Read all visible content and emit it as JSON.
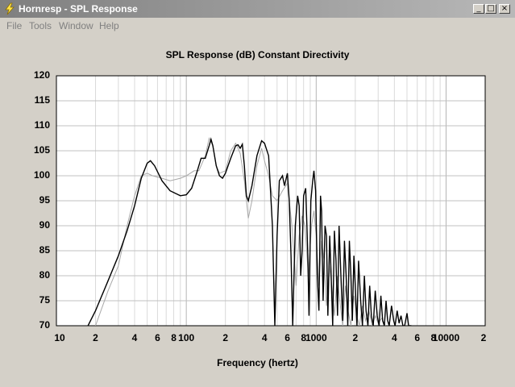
{
  "window": {
    "title": "Hornresp - SPL Response",
    "icon": "lightning-bolt-icon",
    "controls": {
      "minimize": "_",
      "maximize": "□",
      "close": "×"
    }
  },
  "menu": [
    "File",
    "Tools",
    "Window",
    "Help"
  ],
  "chart_data": {
    "type": "line",
    "title": "SPL Response (dB)   Constant Directivity",
    "xlabel": "Frequency (hertz)",
    "ylabel": "",
    "x_scale": "log",
    "xlim": [
      10,
      20000
    ],
    "ylim": [
      70,
      120
    ],
    "grid": true,
    "y_ticks": [
      "120",
      "115",
      "110",
      "105",
      "100",
      "95",
      "90",
      "85",
      "80",
      "75",
      "70"
    ],
    "x_ticks": [
      {
        "value": 10,
        "label": "10"
      },
      {
        "value": 20,
        "label": "2"
      },
      {
        "value": 40,
        "label": "4"
      },
      {
        "value": 60,
        "label": "6"
      },
      {
        "value": 80,
        "label": "8"
      },
      {
        "value": 100,
        "label": "100"
      },
      {
        "value": 200,
        "label": "2"
      },
      {
        "value": 400,
        "label": "4"
      },
      {
        "value": 600,
        "label": "6"
      },
      {
        "value": 800,
        "label": "8"
      },
      {
        "value": 1000,
        "label": "1000"
      },
      {
        "value": 2000,
        "label": "2"
      },
      {
        "value": 4000,
        "label": "4"
      },
      {
        "value": 6000,
        "label": "6"
      },
      {
        "value": 8000,
        "label": "8"
      },
      {
        "value": 10000,
        "label": "10000"
      },
      {
        "value": 20000,
        "label": "2"
      }
    ],
    "series": [
      {
        "color": "#000000",
        "points": [
          [
            17.5,
            70
          ],
          [
            20,
            73
          ],
          [
            25,
            79
          ],
          [
            30,
            84
          ],
          [
            35,
            89
          ],
          [
            40,
            94
          ],
          [
            45,
            99.5
          ],
          [
            50,
            102.5
          ],
          [
            53,
            103
          ],
          [
            57,
            102
          ],
          [
            65,
            99
          ],
          [
            75,
            97
          ],
          [
            90,
            96
          ],
          [
            100,
            96.2
          ],
          [
            110,
            97.5
          ],
          [
            120,
            100.5
          ],
          [
            130,
            103.5
          ],
          [
            140,
            103.5
          ],
          [
            150,
            106
          ],
          [
            155,
            107.3
          ],
          [
            160,
            106
          ],
          [
            170,
            102
          ],
          [
            180,
            100
          ],
          [
            190,
            99.5
          ],
          [
            200,
            100.5
          ],
          [
            220,
            103.5
          ],
          [
            240,
            106
          ],
          [
            250,
            106.2
          ],
          [
            260,
            105.5
          ],
          [
            270,
            106.3
          ],
          [
            280,
            102
          ],
          [
            290,
            96
          ],
          [
            300,
            95
          ],
          [
            320,
            98
          ],
          [
            350,
            104
          ],
          [
            380,
            107
          ],
          [
            400,
            106.5
          ],
          [
            430,
            104
          ],
          [
            460,
            90
          ],
          [
            480,
            70
          ],
          [
            500,
            88
          ],
          [
            520,
            99
          ],
          [
            550,
            100
          ],
          [
            570,
            98
          ],
          [
            600,
            100.5
          ],
          [
            620,
            95
          ],
          [
            640,
            84
          ],
          [
            660,
            70
          ],
          [
            690,
            90
          ],
          [
            720,
            96
          ],
          [
            740,
            94
          ],
          [
            760,
            80
          ],
          [
            780,
            85
          ],
          [
            800,
            96
          ],
          [
            830,
            97.5
          ],
          [
            860,
            85
          ],
          [
            880,
            72
          ],
          [
            910,
            95
          ],
          [
            940,
            99
          ],
          [
            960,
            101
          ],
          [
            990,
            97
          ],
          [
            1020,
            80
          ],
          [
            1050,
            73
          ],
          [
            1080,
            96
          ],
          [
            1100,
            93
          ],
          [
            1130,
            75
          ],
          [
            1170,
            90
          ],
          [
            1200,
            88
          ],
          [
            1230,
            72
          ],
          [
            1270,
            88
          ],
          [
            1300,
            81
          ],
          [
            1340,
            70
          ],
          [
            1380,
            89
          ],
          [
            1420,
            83
          ],
          [
            1460,
            72
          ],
          [
            1500,
            90
          ],
          [
            1550,
            80
          ],
          [
            1600,
            71
          ],
          [
            1650,
            87
          ],
          [
            1700,
            80
          ],
          [
            1750,
            70
          ],
          [
            1800,
            87
          ],
          [
            1850,
            80
          ],
          [
            1900,
            71
          ],
          [
            1950,
            84
          ],
          [
            2000,
            78
          ],
          [
            2060,
            70
          ],
          [
            2120,
            83
          ],
          [
            2200,
            75
          ],
          [
            2270,
            70
          ],
          [
            2350,
            80
          ],
          [
            2420,
            73
          ],
          [
            2500,
            70
          ],
          [
            2580,
            78
          ],
          [
            2660,
            72
          ],
          [
            2750,
            70
          ],
          [
            2850,
            77
          ],
          [
            2950,
            72
          ],
          [
            3050,
            70
          ],
          [
            3150,
            76
          ],
          [
            3250,
            71
          ],
          [
            3350,
            70
          ],
          [
            3450,
            75
          ],
          [
            3550,
            71
          ],
          [
            3650,
            70
          ],
          [
            3800,
            74
          ],
          [
            3950,
            71
          ],
          [
            4050,
            70
          ],
          [
            4200,
            73
          ],
          [
            4350,
            70.5
          ],
          [
            4500,
            72
          ],
          [
            4650,
            70
          ],
          [
            4800,
            70
          ],
          [
            5000,
            72.5
          ],
          [
            5150,
            70
          ],
          [
            5400,
            70
          ]
        ]
      },
      {
        "color": "#a8a8a8",
        "points": [
          [
            20,
            70
          ],
          [
            25,
            77
          ],
          [
            30,
            82
          ],
          [
            35,
            90
          ],
          [
            40,
            96
          ],
          [
            45,
            100
          ],
          [
            50,
            100.5
          ],
          [
            55,
            100
          ],
          [
            65,
            99.5
          ],
          [
            75,
            99
          ],
          [
            90,
            99.5
          ],
          [
            100,
            100
          ],
          [
            115,
            101
          ],
          [
            125,
            101
          ],
          [
            140,
            104
          ],
          [
            150,
            107.5
          ],
          [
            160,
            106
          ],
          [
            170,
            102
          ],
          [
            180,
            100.5
          ],
          [
            200,
            101
          ],
          [
            220,
            105
          ],
          [
            240,
            106.5
          ],
          [
            260,
            104.5
          ],
          [
            280,
            99
          ],
          [
            300,
            91.5
          ],
          [
            320,
            95
          ],
          [
            350,
            102
          ],
          [
            380,
            105.5
          ],
          [
            400,
            103
          ],
          [
            430,
            100
          ],
          [
            460,
            96
          ],
          [
            500,
            95
          ],
          [
            550,
            97
          ],
          [
            600,
            98.5
          ],
          [
            650,
            90
          ],
          [
            700,
            78
          ],
          [
            740,
            88
          ],
          [
            780,
            92
          ],
          [
            820,
            90
          ],
          [
            870,
            80
          ],
          [
            920,
            90
          ],
          [
            960,
            93
          ],
          [
            1000,
            88
          ],
          [
            1050,
            78
          ],
          [
            1100,
            87
          ],
          [
            1150,
            83
          ],
          [
            1200,
            74
          ],
          [
            1260,
            82
          ],
          [
            1320,
            78
          ],
          [
            1380,
            72
          ],
          [
            1450,
            80
          ],
          [
            1520,
            75
          ],
          [
            1600,
            70
          ],
          [
            1680,
            78
          ],
          [
            1760,
            73
          ],
          [
            1850,
            70
          ],
          [
            1950,
            76
          ],
          [
            2050,
            72
          ],
          [
            2150,
            70
          ],
          [
            2270,
            74
          ],
          [
            2400,
            71
          ],
          [
            2550,
            73
          ],
          [
            2700,
            70
          ],
          [
            2850,
            72
          ],
          [
            3000,
            70.5
          ],
          [
            3200,
            71.5
          ],
          [
            3400,
            70
          ]
        ]
      }
    ]
  }
}
